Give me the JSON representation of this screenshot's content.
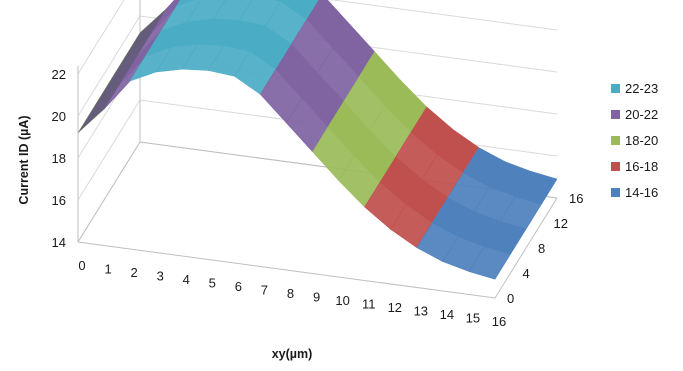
{
  "chart_data": {
    "type": "surface",
    "title": "",
    "xlabel": "xy(µm)",
    "ylabel": "Current ID (µA)",
    "zlim": [
      14,
      23
    ],
    "z_ticks": [
      "14",
      "16",
      "18",
      "20",
      "22"
    ],
    "x_ticks": [
      "0",
      "1",
      "2",
      "3",
      "4",
      "5",
      "6",
      "7",
      "8",
      "9",
      "10",
      "11",
      "12",
      "13",
      "14",
      "15",
      "16"
    ],
    "depth_ticks": [
      "0",
      "4",
      "8",
      "12",
      "16"
    ],
    "x": [
      0,
      1,
      2,
      3,
      4,
      5,
      6,
      7,
      8,
      9,
      10,
      11,
      12,
      13,
      14,
      15,
      16
    ],
    "depth": [
      0,
      4,
      8,
      12,
      16
    ],
    "surface_profile_uA": [
      19.2,
      20.5,
      22.0,
      22.6,
      22.9,
      23.0,
      22.9,
      22.2,
      21.0,
      19.8,
      18.6,
      17.5,
      16.6,
      15.9,
      15.4,
      15.1,
      14.9
    ],
    "legend_position": "right",
    "legend": [
      {
        "label": "22-23",
        "color": "#4bacc6"
      },
      {
        "label": "20-22",
        "color": "#8064a2"
      },
      {
        "label": "18-20",
        "color": "#9bbb59"
      },
      {
        "label": "16-18",
        "color": "#c0504d"
      },
      {
        "label": "14-16",
        "color": "#4f81bd"
      }
    ]
  }
}
